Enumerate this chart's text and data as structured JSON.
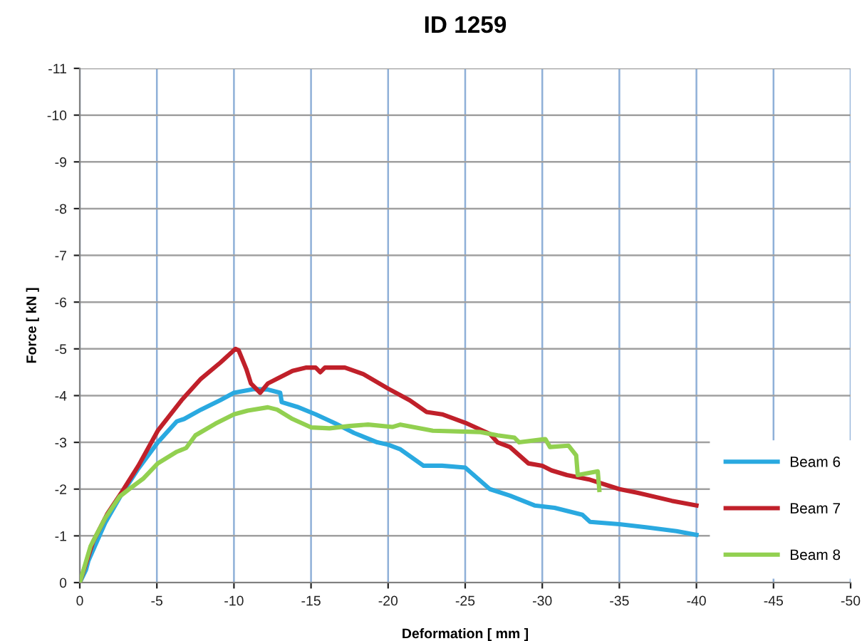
{
  "chart_data": {
    "type": "line",
    "title": "ID 1259",
    "xlabel": "Deformation [ mm ]",
    "ylabel": "Force [ kN ]",
    "xlim": [
      0,
      -50
    ],
    "xticks": [
      0,
      -5,
      -10,
      -15,
      -20,
      -25,
      -30,
      -35,
      -40,
      -45,
      -50
    ],
    "ylim": [
      0,
      -11
    ],
    "yticks": [
      0,
      -1,
      -2,
      -3,
      -4,
      -5,
      -6,
      -7,
      -8,
      -9,
      -10,
      -11
    ],
    "grid": true,
    "legend": "bottom right",
    "marker": "none",
    "line_style": "solid",
    "series": [
      {
        "name": "Beam 6",
        "color": "#2aa9e0",
        "x": [
          0,
          -0.4,
          -0.56,
          -1.65,
          -2.73,
          -3.8,
          -5.06,
          -6.3,
          -6.77,
          -7.86,
          -9.1,
          -10,
          -11.3,
          -12.2,
          -13,
          -13.1,
          -14.1,
          -15.3,
          -16.6,
          -17.8,
          -19.3,
          -20,
          -20.8,
          -22.3,
          -23.5,
          -25,
          -26.6,
          -27.9,
          -29.5,
          -30.8,
          -32.6,
          -33.1,
          -35,
          -36.8,
          -38.7,
          -40
        ],
        "values": [
          0,
          -0.27,
          -0.47,
          -1.28,
          -1.9,
          -2.44,
          -3.0,
          -3.45,
          -3.5,
          -3.7,
          -3.9,
          -4.06,
          -4.14,
          -4.13,
          -4.06,
          -3.86,
          -3.76,
          -3.6,
          -3.4,
          -3.2,
          -3.0,
          -2.95,
          -2.85,
          -2.5,
          -2.5,
          -2.46,
          -2.0,
          -1.86,
          -1.65,
          -1.6,
          -1.45,
          -1.3,
          -1.25,
          -1.18,
          -1.1,
          -1.02
        ]
      },
      {
        "name": "Beam 7",
        "color": "#c0202a",
        "x": [
          0,
          -0.87,
          -1.8,
          -2.73,
          -3.8,
          -5.06,
          -6.6,
          -7.86,
          -9.1,
          -10.1,
          -10.3,
          -10.8,
          -11.1,
          -11.7,
          -12.2,
          -12.8,
          -13.8,
          -14.7,
          -15.3,
          -15.6,
          -15.9,
          -17.2,
          -18.4,
          -20,
          -21.4,
          -22.5,
          -23.5,
          -25,
          -26.6,
          -27.1,
          -27.9,
          -29.1,
          -30,
          -30.6,
          -31.6,
          -33.1,
          -35,
          -36.2,
          -38.4,
          -40
        ],
        "values": [
          0,
          -0.88,
          -1.48,
          -1.94,
          -2.5,
          -3.25,
          -3.9,
          -4.36,
          -4.7,
          -5.0,
          -4.97,
          -4.57,
          -4.26,
          -4.06,
          -4.26,
          -4.36,
          -4.53,
          -4.6,
          -4.6,
          -4.5,
          -4.6,
          -4.6,
          -4.46,
          -4.15,
          -3.9,
          -3.65,
          -3.6,
          -3.42,
          -3.18,
          -3.0,
          -2.9,
          -2.55,
          -2.5,
          -2.4,
          -2.3,
          -2.2,
          -2.0,
          -1.92,
          -1.75,
          -1.65
        ]
      },
      {
        "name": "Beam 8",
        "color": "#92d050",
        "x": [
          0,
          -0.7,
          -1.65,
          -2.58,
          -3.2,
          -4.1,
          -5.06,
          -6.3,
          -6.9,
          -7.5,
          -8.8,
          -10,
          -10.9,
          -12.2,
          -12.8,
          -13.8,
          -15,
          -16.2,
          -17.5,
          -18.7,
          -20.3,
          -20.8,
          -22.9,
          -26,
          -27.1,
          -28.2,
          -28.5,
          -30.2,
          -30.5,
          -31.7,
          -32.2,
          -32.3,
          -33.6,
          -33.7
        ],
        "values": [
          0,
          -0.78,
          -1.38,
          -1.84,
          -2.0,
          -2.22,
          -2.55,
          -2.8,
          -2.88,
          -3.15,
          -3.4,
          -3.6,
          -3.68,
          -3.75,
          -3.7,
          -3.5,
          -3.32,
          -3.3,
          -3.35,
          -3.38,
          -3.33,
          -3.38,
          -3.25,
          -3.22,
          -3.15,
          -3.1,
          -3.0,
          -3.07,
          -2.9,
          -2.93,
          -2.72,
          -2.3,
          -2.38,
          -1.98
        ]
      }
    ]
  }
}
